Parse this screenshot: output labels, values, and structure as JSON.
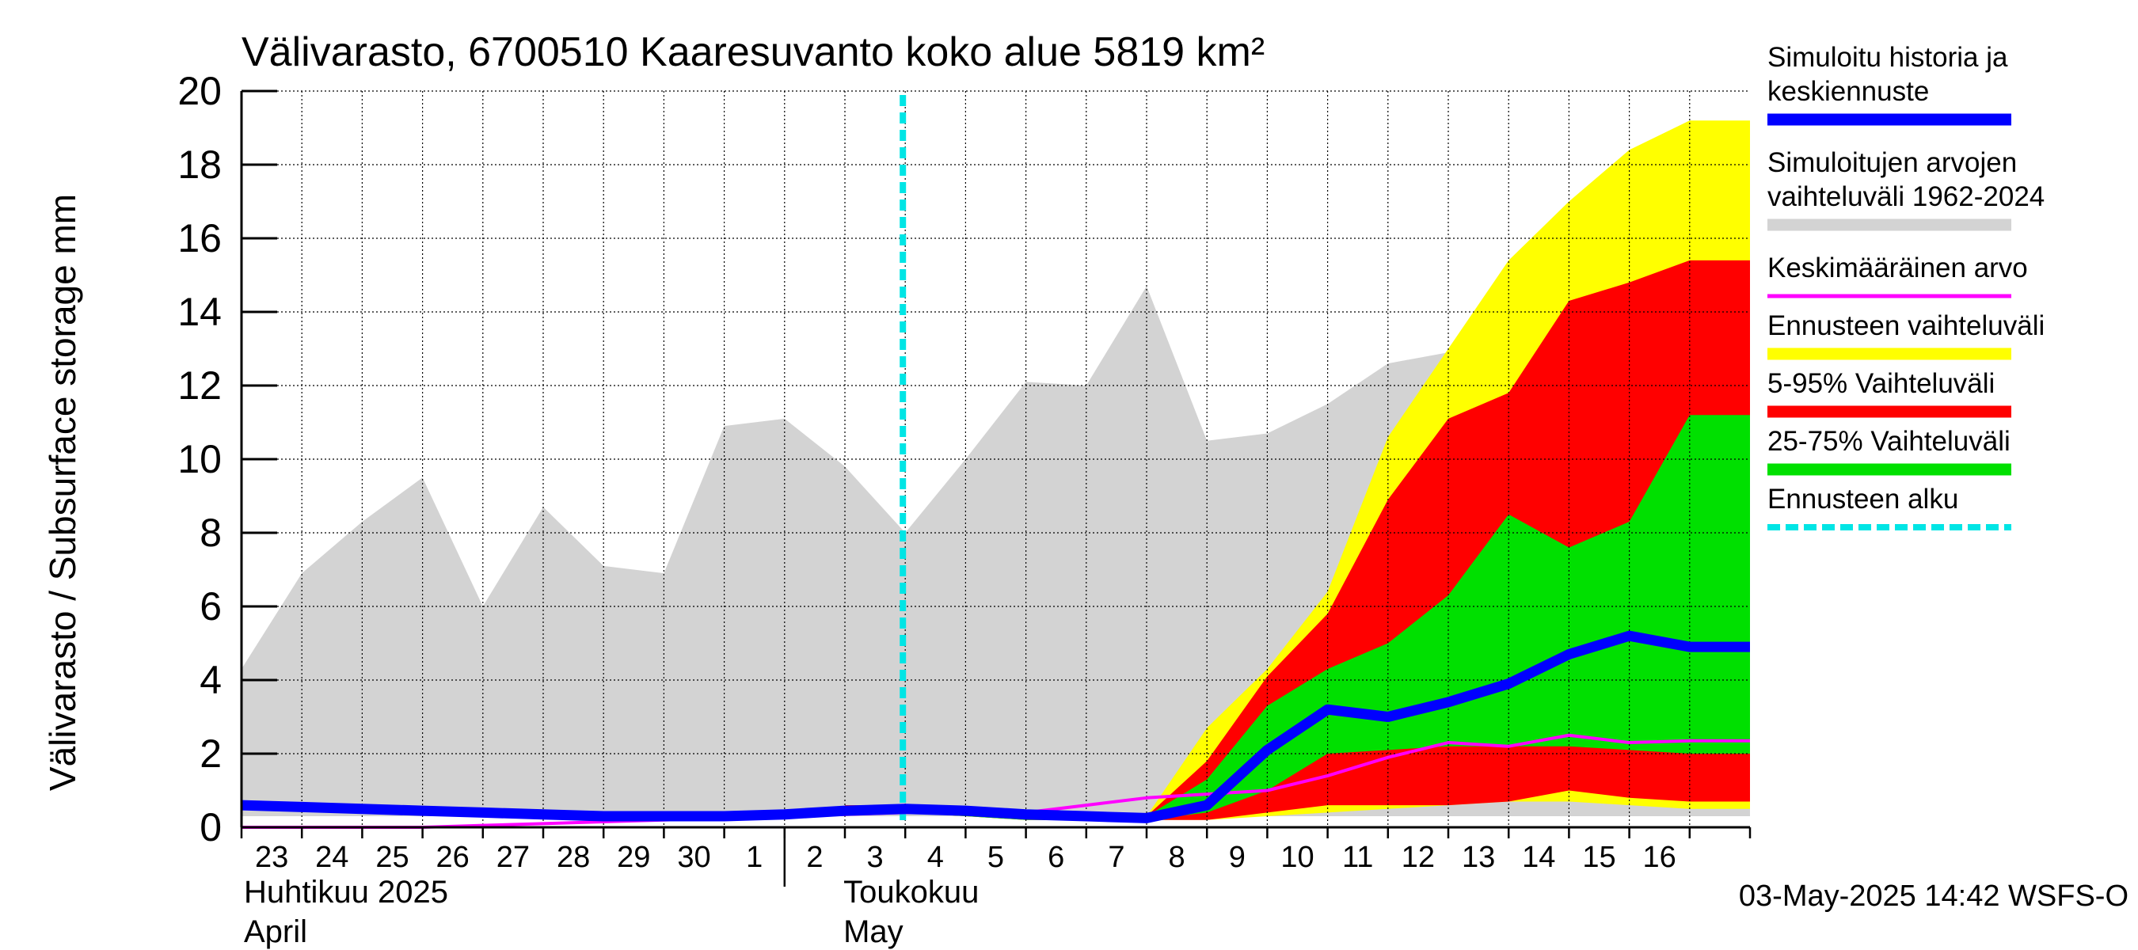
{
  "chart_data": {
    "type": "area",
    "title": "Välivarasto, 6700510 Kaaresuvanto koko alue 5819 km²",
    "ylabel": "Välivarasto / Subsurface storage  mm",
    "ylim": [
      0,
      20
    ],
    "yticks": [
      0,
      2,
      4,
      6,
      8,
      10,
      12,
      14,
      16,
      18,
      20
    ],
    "grid": true,
    "legend_position": "right",
    "x_day_labels": [
      "23",
      "24",
      "25",
      "26",
      "27",
      "28",
      "29",
      "30",
      "1",
      "2",
      "3",
      "4",
      "5",
      "6",
      "7",
      "8",
      "9",
      "10",
      "11",
      "12",
      "13",
      "14",
      "15",
      "16"
    ],
    "month_labels": [
      {
        "fi": "Huhtikuu  2025",
        "en": "April"
      },
      {
        "fi": "Toukokuu",
        "en": "May"
      }
    ],
    "x_dates": [
      "2025-04-22",
      "2025-04-23",
      "2025-04-24",
      "2025-04-25",
      "2025-04-26",
      "2025-04-27",
      "2025-04-28",
      "2025-04-29",
      "2025-04-30",
      "2025-05-01",
      "2025-05-02",
      "2025-05-03",
      "2025-05-04",
      "2025-05-05",
      "2025-05-06",
      "2025-05-07",
      "2025-05-08",
      "2025-05-09",
      "2025-05-10",
      "2025-05-11",
      "2025-05-12",
      "2025-05-13",
      "2025-05-14",
      "2025-05-15",
      "2025-05-16",
      "2025-05-17"
    ],
    "forecast_start": "2025-05-03",
    "series": [
      {
        "name": "Simuloitujen arvojen vaihteluväli 1962-2024",
        "kind": "band",
        "color": "#d3d3d3",
        "upper": [
          4.3,
          6.9,
          8.3,
          9.5,
          6.0,
          8.7,
          7.1,
          6.9,
          10.9,
          11.1,
          9.8,
          8.0,
          10.0,
          12.1,
          12.0,
          14.7,
          10.5,
          10.7,
          11.5,
          12.6,
          12.9,
          13.7,
          13.0,
          12.9,
          12.4,
          12.4
        ],
        "lower": [
          0.3,
          0.3,
          0.3,
          0.3,
          0.3,
          0.3,
          0.3,
          0.3,
          0.3,
          0.3,
          0.3,
          0.3,
          0.3,
          0.3,
          0.3,
          0.3,
          0.3,
          0.3,
          0.3,
          0.3,
          0.3,
          0.3,
          0.3,
          0.3,
          0.3,
          0.3
        ]
      },
      {
        "name": "Ennusteen vaihteluväli",
        "kind": "band",
        "color": "#ffff00",
        "upper": [
          null,
          null,
          null,
          null,
          null,
          null,
          null,
          null,
          null,
          null,
          0.6,
          0.6,
          0.4,
          0.3,
          0.3,
          0.3,
          2.7,
          4.3,
          6.4,
          10.6,
          13.0,
          15.4,
          17.0,
          18.4,
          19.2,
          19.2
        ],
        "lower": [
          null,
          null,
          null,
          null,
          null,
          null,
          null,
          null,
          null,
          null,
          0.4,
          0.4,
          0.3,
          0.2,
          0.2,
          0.2,
          0.2,
          0.3,
          0.4,
          0.5,
          0.6,
          0.7,
          0.7,
          0.6,
          0.5,
          0.5
        ]
      },
      {
        "name": "5-95% Vaihteluväli",
        "kind": "band",
        "color": "#ff0000",
        "upper": [
          null,
          null,
          null,
          null,
          null,
          null,
          null,
          null,
          null,
          null,
          0.6,
          0.6,
          0.4,
          0.3,
          0.3,
          0.3,
          1.8,
          4.1,
          5.8,
          8.9,
          11.1,
          11.8,
          14.3,
          14.8,
          15.4,
          15.4
        ],
        "lower": [
          null,
          null,
          null,
          null,
          null,
          null,
          null,
          null,
          null,
          null,
          0.4,
          0.4,
          0.3,
          0.2,
          0.2,
          0.2,
          0.2,
          0.4,
          0.6,
          0.6,
          0.6,
          0.7,
          1.0,
          0.8,
          0.7,
          0.7
        ]
      },
      {
        "name": "25-75% Vaihteluväli",
        "kind": "band",
        "color": "#00e000",
        "upper": [
          null,
          null,
          null,
          null,
          null,
          null,
          null,
          null,
          null,
          null,
          0.5,
          0.5,
          0.4,
          0.3,
          0.3,
          0.3,
          1.3,
          3.3,
          4.3,
          5.0,
          6.3,
          8.5,
          7.6,
          8.3,
          11.2,
          11.2
        ],
        "lower": [
          null,
          null,
          null,
          null,
          null,
          null,
          null,
          null,
          null,
          null,
          0.4,
          0.4,
          0.3,
          0.2,
          0.2,
          0.2,
          0.4,
          1.0,
          2.0,
          2.1,
          2.2,
          2.2,
          2.2,
          2.1,
          2.0,
          2.0
        ]
      },
      {
        "name": "Keskimääräinen arvo",
        "kind": "line",
        "color": "#ff00ff",
        "values": [
          0.0,
          0.0,
          0.0,
          0.0,
          0.05,
          0.1,
          0.15,
          0.2,
          0.25,
          0.3,
          0.35,
          0.4,
          0.4,
          0.4,
          0.6,
          0.8,
          0.9,
          1.0,
          1.4,
          1.9,
          2.3,
          2.2,
          2.5,
          2.3,
          2.35,
          2.35
        ]
      },
      {
        "name": "Simuloitu historia ja keskiennuste",
        "kind": "line",
        "color": "#0000ff",
        "values": [
          0.6,
          0.55,
          0.5,
          0.45,
          0.4,
          0.35,
          0.3,
          0.3,
          0.3,
          0.35,
          0.45,
          0.5,
          0.45,
          0.35,
          0.3,
          0.25,
          0.6,
          2.1,
          3.2,
          3.0,
          3.4,
          3.9,
          4.7,
          5.2,
          4.9,
          4.9
        ]
      }
    ],
    "legend": [
      {
        "lines": [
          "Simuloitu historia ja",
          "keskiennuste"
        ],
        "color": "#0000ff",
        "style": "solid"
      },
      {
        "lines": [
          "Simuloitujen arvojen",
          "vaihteluväli 1962-2024"
        ],
        "color": "#d3d3d3",
        "style": "solid"
      },
      {
        "lines": [
          "Keskimääräinen arvo"
        ],
        "color": "#ff00ff",
        "style": "thin"
      },
      {
        "lines": [
          "Ennusteen vaihteluväli"
        ],
        "color": "#ffff00",
        "style": "solid"
      },
      {
        "lines": [
          "5-95% Vaihteluväli"
        ],
        "color": "#ff0000",
        "style": "solid"
      },
      {
        "lines": [
          "25-75% Vaihteluväli"
        ],
        "color": "#00e000",
        "style": "solid"
      },
      {
        "lines": [
          "Ennusteen alku"
        ],
        "color": "#00e5e5",
        "style": "dashed"
      }
    ],
    "footer": "03-May-2025 14:42 WSFS-O"
  }
}
